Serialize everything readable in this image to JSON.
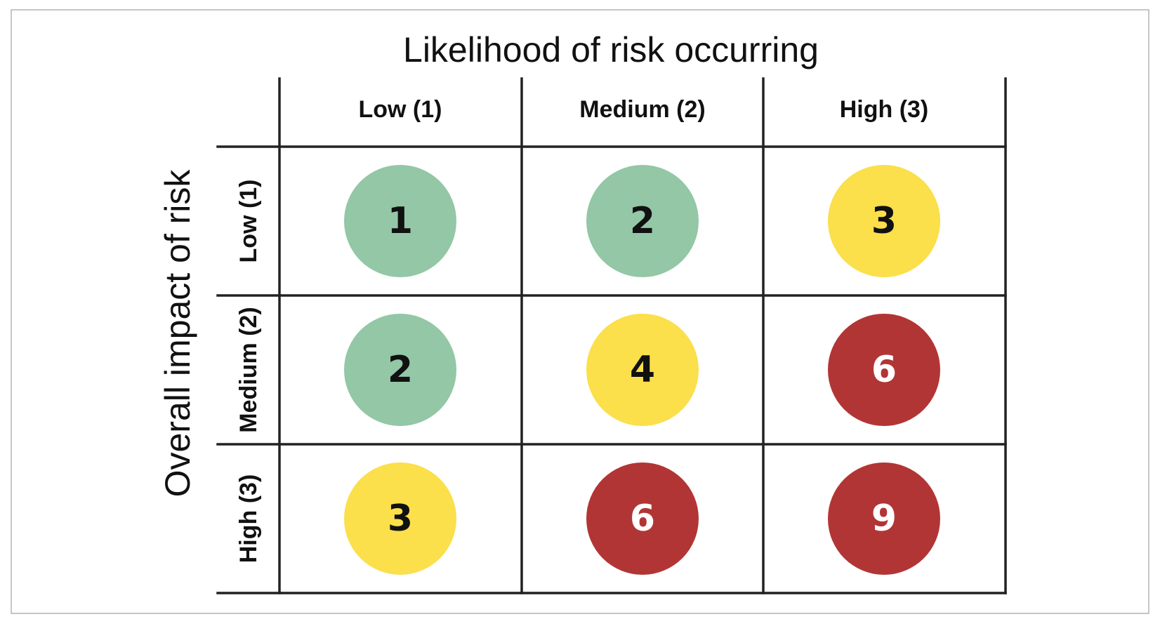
{
  "x_axis_title": "Likelihood of risk occurring",
  "y_axis_title": "Overall impact of risk",
  "columns": [
    "Low (1)",
    "Medium (2)",
    "High (3)"
  ],
  "rows": [
    "Low (1)",
    "Medium (2)",
    "High (3)"
  ],
  "scores": [
    [
      "1",
      "2",
      "3"
    ],
    [
      "2",
      "4",
      "6"
    ],
    [
      "3",
      "6",
      "9"
    ]
  ],
  "levels": [
    [
      "low",
      "low",
      "medium"
    ],
    [
      "low",
      "medium",
      "high"
    ],
    [
      "medium",
      "high",
      "high"
    ]
  ],
  "level_colors": {
    "low": "#93c7a6",
    "medium": "#fbdf4b",
    "high": "#b23535"
  },
  "level_text_colors": {
    "low": "#111111",
    "medium": "#111111",
    "high": "#ffffff"
  }
}
